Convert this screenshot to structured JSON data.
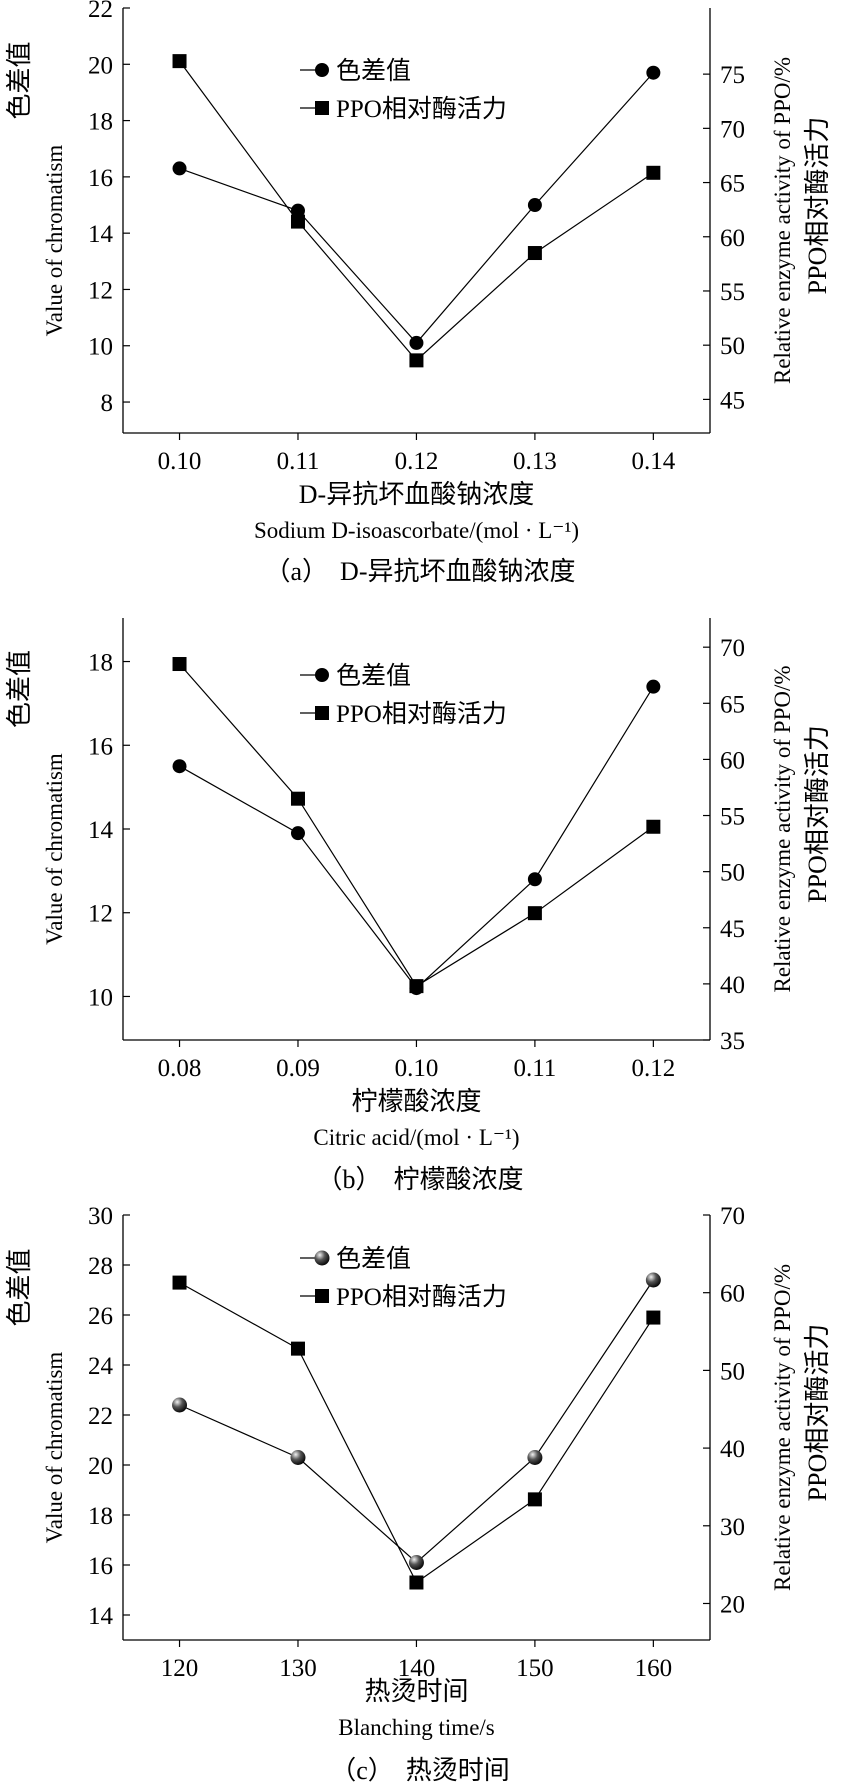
{
  "chart_data": [
    {
      "type": "line",
      "panel_label": "（a）",
      "caption_text": "D-异抗坏血酸钠浓度",
      "xlabel_cn": "D-异抗坏血酸钠浓度",
      "xlabel_en": "Sodium D-isoascorbate/(mol · L⁻¹)",
      "ylabel_left_cn": "色差值",
      "ylabel_left_en": "Value of chromatism",
      "ylabel_right_en": "Relative enzyme activity of PPO/%",
      "ylabel_right_cn": "PPO相对酶活力",
      "categories": [
        "0.10",
        "0.11",
        "0.12",
        "0.13",
        "0.14"
      ],
      "y_left_ticks": [
        "8",
        "10",
        "12",
        "14",
        "16",
        "18",
        "20",
        "22"
      ],
      "y_left_range": [
        6.9,
        22
      ],
      "y_right_ticks": [
        "45",
        "50",
        "55",
        "60",
        "65",
        "70",
        "75"
      ],
      "y_right_range": [
        41.9,
        81.1
      ],
      "legend_position": "top-center",
      "series": [
        {
          "name": "色差值",
          "axis": "left",
          "marker": "circle",
          "values": [
            16.3,
            14.8,
            10.1,
            15.0,
            19.7
          ]
        },
        {
          "name": "PPO相对酶活力",
          "axis": "right",
          "marker": "square",
          "values": [
            76.2,
            61.4,
            48.6,
            58.5,
            65.9
          ]
        }
      ]
    },
    {
      "type": "line",
      "panel_label": "（b）",
      "caption_text": "柠檬酸浓度",
      "xlabel_cn": "柠檬酸浓度",
      "xlabel_en": "Citric acid/(mol · L⁻¹)",
      "ylabel_left_cn": "色差值",
      "ylabel_left_en": "Value of chromatism",
      "ylabel_right_en": "Relative enzyme activity of PPO/%",
      "ylabel_right_cn": "PPO相对酶活力",
      "categories": [
        "0.08",
        "0.09",
        "0.10",
        "0.11",
        "0.12"
      ],
      "y_left_ticks": [
        "10",
        "12",
        "14",
        "16",
        "18"
      ],
      "y_left_range": [
        8.96,
        19.04
      ],
      "y_right_ticks": [
        "35",
        "40",
        "45",
        "50",
        "55",
        "60",
        "65",
        "70"
      ],
      "y_right_range": [
        35,
        72.6
      ],
      "legend_position": "top-center",
      "series": [
        {
          "name": "色差值",
          "axis": "left",
          "marker": "circle",
          "values": [
            15.5,
            13.9,
            10.2,
            12.8,
            17.4
          ]
        },
        {
          "name": "PPO相对酶活力",
          "axis": "right",
          "marker": "square",
          "values": [
            68.5,
            56.5,
            39.8,
            46.3,
            54.0
          ]
        }
      ]
    },
    {
      "type": "line",
      "panel_label": "（c）",
      "caption_text": "热烫时间",
      "xlabel_cn": "热烫时间",
      "xlabel_en": "Blanching time/s",
      "ylabel_left_cn": "色差值",
      "ylabel_left_en": "Value of chromatism",
      "ylabel_right_en": "Relative enzyme activity of PPO/%",
      "ylabel_right_cn": "PPO相对酶活力",
      "categories": [
        "120",
        "130",
        "140",
        "150",
        "160"
      ],
      "y_left_ticks": [
        "14",
        "16",
        "18",
        "20",
        "22",
        "24",
        "26",
        "28",
        "30"
      ],
      "y_left_range": [
        13,
        30
      ],
      "y_right_ticks": [
        "20",
        "30",
        "40",
        "50",
        "60",
        "70"
      ],
      "y_right_range": [
        15.3,
        70
      ],
      "legend_position": "top-center",
      "series": [
        {
          "name": "色差值",
          "axis": "left",
          "marker": "sphere",
          "values": [
            22.4,
            20.3,
            16.1,
            20.3,
            27.4
          ]
        },
        {
          "name": "PPO相对酶活力",
          "axis": "right",
          "marker": "square",
          "values": [
            61.3,
            52.8,
            22.7,
            33.4,
            56.8
          ]
        }
      ]
    }
  ]
}
